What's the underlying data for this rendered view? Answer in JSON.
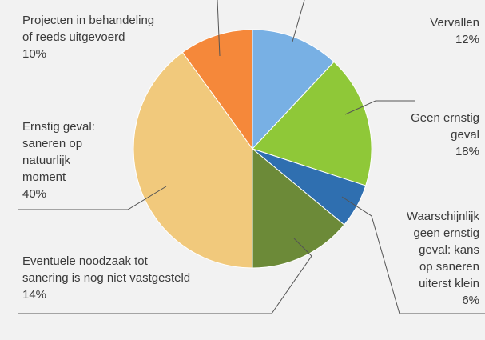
{
  "chart_data": {
    "type": "pie",
    "unit": "%",
    "slices": [
      {
        "label": "Vervallen",
        "value": 12,
        "value_text": "12%",
        "color": "#78b0e4"
      },
      {
        "label": "Geen ernstig geval",
        "value": 18,
        "value_text": "18%",
        "color": "#8fc838"
      },
      {
        "label": "Waarschijnlijk geen ernstig geval: kans op saneren uiterst klein",
        "value": 6,
        "value_text": "6%",
        "color": "#2f6fb0"
      },
      {
        "label": "Eventuele noodzaak tot sanering is nog niet vastgesteld",
        "value": 14,
        "value_text": "14%",
        "color": "#6c8a38"
      },
      {
        "label": "Ernstig geval: saneren op natuurlijk moment",
        "value": 40,
        "value_text": "40%",
        "color": "#f1c97c"
      },
      {
        "label": "Projecten in behandeling of reeds uitgevoerd",
        "value": 10,
        "value_text": "10%",
        "color": "#f5883a"
      }
    ],
    "label_lines": [
      [
        "Vervallen"
      ],
      [
        "Geen ernstig",
        "geval"
      ],
      [
        "Waarschijnlijk",
        "geen ernstig",
        "geval: kans",
        "op saneren",
        "uiterst klein"
      ],
      [
        "Eventuele noodzaak tot",
        "sanering is nog niet vastgesteld"
      ],
      [
        "Ernstig geval:",
        "saneren op",
        "natuurlijk",
        "moment"
      ],
      [
        "Projecten in behandeling",
        "of reeds uitgevoerd"
      ]
    ],
    "start": "12 o'clock",
    "direction": "clockwise",
    "legend": "none"
  }
}
